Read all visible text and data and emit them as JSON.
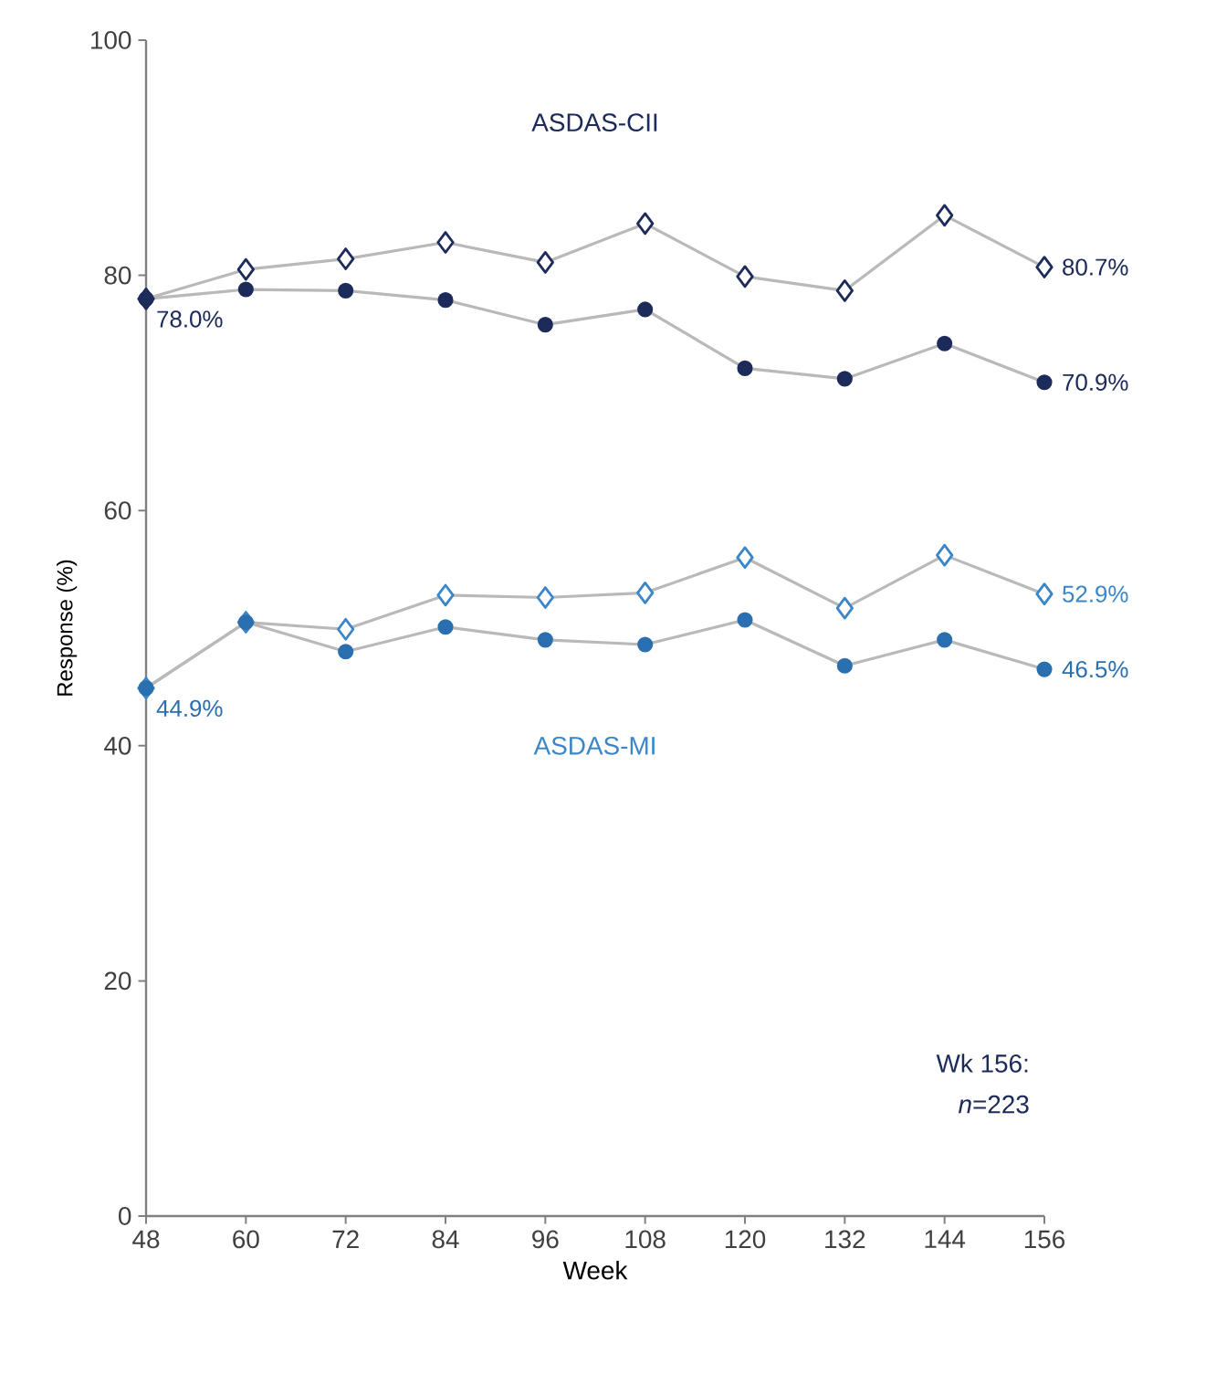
{
  "chart_data": {
    "type": "line",
    "xlabel": "Week",
    "ylabel": "Response (%)",
    "x": [
      48,
      60,
      72,
      84,
      96,
      108,
      120,
      132,
      144,
      156
    ],
    "xlim": [
      48,
      156
    ],
    "xticks": [
      48,
      60,
      72,
      84,
      96,
      108,
      120,
      132,
      144,
      156
    ],
    "ylim": [
      0,
      100
    ],
    "yticks": [
      0,
      20,
      40,
      60,
      80,
      100
    ],
    "series": [
      {
        "color": "#1c2b5a",
        "marker": "diamond",
        "values": [
          78.0,
          80.5,
          81.4,
          82.8,
          81.1,
          84.4,
          79.9,
          78.7,
          85.1,
          80.7
        ],
        "value_labels": [
          null,
          null,
          null,
          null,
          null,
          null,
          null,
          null,
          null,
          "80.7%"
        ]
      },
      {
        "color": "#1c2b5a",
        "marker": "circle",
        "values": [
          78.0,
          78.8,
          78.7,
          77.9,
          75.8,
          77.1,
          72.1,
          71.2,
          74.2,
          70.9
        ],
        "value_labels": [
          "78.0%",
          null,
          null,
          null,
          null,
          null,
          null,
          null,
          null,
          "70.9%"
        ]
      },
      {
        "color": "#3a86c8",
        "marker": "diamond",
        "values": [
          44.9,
          50.5,
          49.9,
          52.8,
          52.6,
          53.0,
          56.0,
          51.7,
          56.2,
          52.9
        ],
        "value_labels": [
          null,
          null,
          null,
          null,
          null,
          null,
          null,
          null,
          null,
          "52.9%"
        ]
      },
      {
        "color": "#2a6fb0",
        "marker": "circle",
        "values": [
          44.9,
          50.5,
          48.0,
          50.1,
          49.0,
          48.6,
          50.7,
          46.8,
          49.0,
          46.5
        ],
        "value_labels": [
          "44.9%",
          null,
          null,
          null,
          null,
          null,
          null,
          null,
          null,
          "46.5%"
        ]
      }
    ],
    "annotations": [
      "ASDAS-CII",
      "ASDAS-MI",
      "Wk 156:",
      "*n*=223"
    ]
  }
}
